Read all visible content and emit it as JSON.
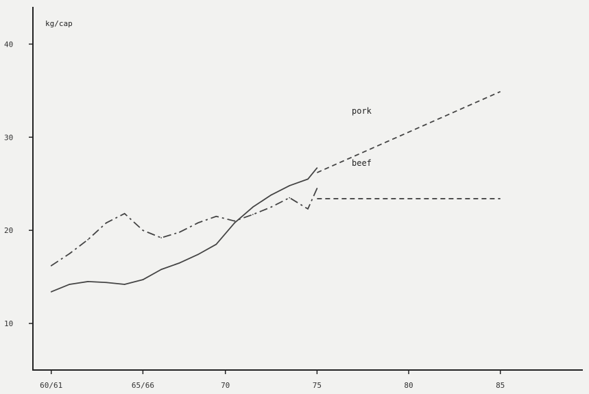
{
  "chart_data": {
    "type": "line",
    "ylabel": "kg/cap",
    "ylim": [
      5,
      44
    ],
    "xlim": [
      1959.5,
      1989.5
    ],
    "x_ticks": [
      {
        "x": 1960.5,
        "label": "60/61"
      },
      {
        "x": 1965.5,
        "label": "65/66"
      },
      {
        "x": 1970,
        "label": "70"
      },
      {
        "x": 1975,
        "label": "75"
      },
      {
        "x": 1980,
        "label": "80"
      },
      {
        "x": 1985,
        "label": "85"
      }
    ],
    "y_ticks": [
      {
        "y": 10,
        "label": "10"
      },
      {
        "y": 20,
        "label": "20"
      },
      {
        "y": 30,
        "label": "30"
      },
      {
        "y": 40,
        "label": "40"
      }
    ],
    "series": [
      {
        "name": "pork",
        "color": "#444444",
        "actual": {
          "x": [
            1960.5,
            1961.5,
            1962.5,
            1963.5,
            1964.5,
            1965.5,
            1966.5,
            1967.5,
            1968.5,
            1969.5,
            1970.5,
            1971.5,
            1972.5,
            1973.5,
            1974.5,
            1975
          ],
          "y": [
            13.4,
            14.2,
            14.5,
            14.4,
            14.2,
            14.7,
            15.8,
            16.5,
            17.4,
            18.5,
            20.8,
            22.5,
            23.8,
            24.8,
            25.5,
            26.7
          ]
        },
        "projection": {
          "x": [
            1975,
            1985
          ],
          "y": [
            26.2,
            34.9
          ]
        }
      },
      {
        "name": "beef",
        "color": "#444444",
        "actual": {
          "x": [
            1960.5,
            1961.5,
            1962.5,
            1963.5,
            1964.5,
            1965.5,
            1966.5,
            1967.5,
            1968.5,
            1969.5,
            1970.5,
            1971.5,
            1972.5,
            1973.5,
            1974.5,
            1975
          ],
          "y": [
            16.2,
            17.5,
            19.0,
            20.8,
            21.8,
            20.0,
            19.2,
            19.8,
            20.8,
            21.5,
            21.0,
            21.7,
            22.5,
            23.5,
            22.3,
            24.5
          ]
        },
        "projection": {
          "x": [
            1975,
            1985
          ],
          "y": [
            23.4,
            23.4
          ]
        }
      }
    ]
  }
}
